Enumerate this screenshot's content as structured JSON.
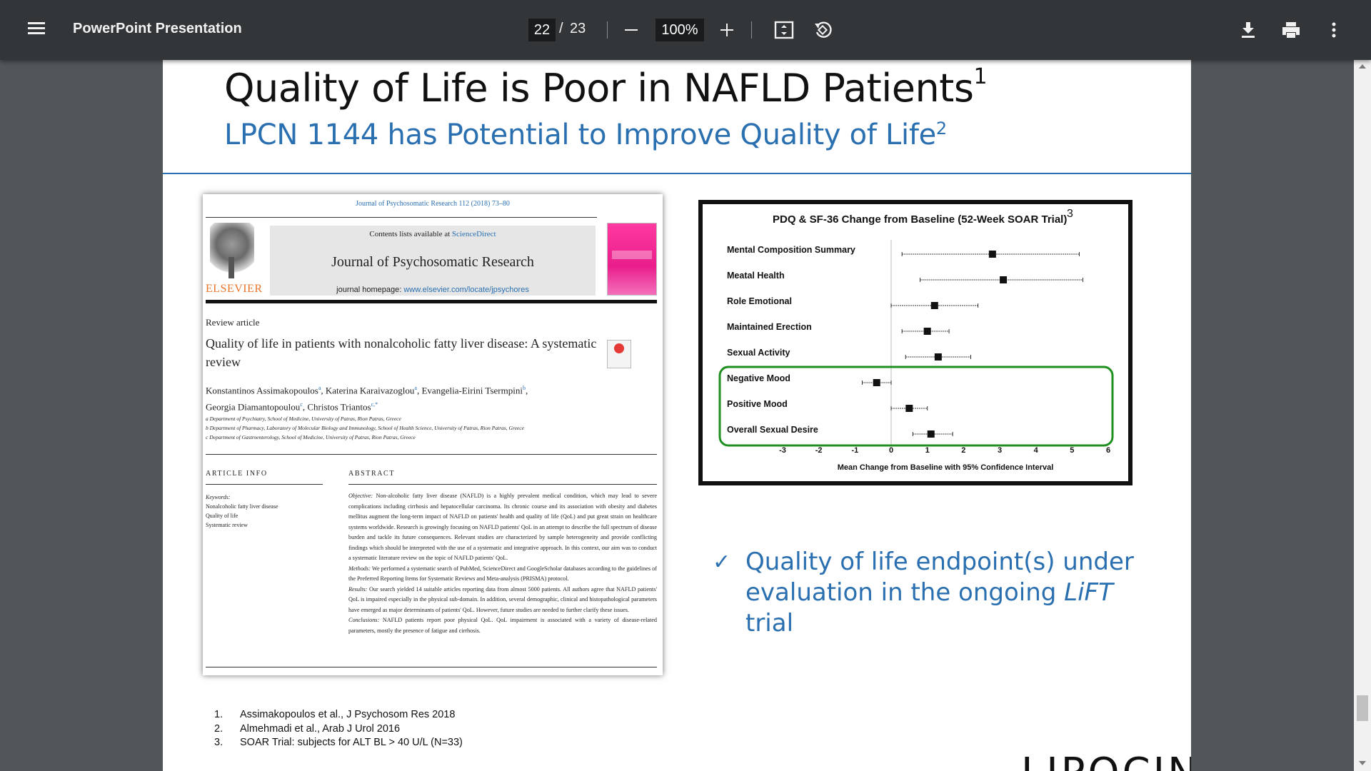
{
  "toolbar": {
    "title": "PowerPoint Presentation",
    "page_current": "22",
    "page_separator": "/",
    "page_total": "23",
    "zoom": "100%"
  },
  "slide": {
    "title": "Quality of Life is Poor in NAFLD Patients",
    "title_sup": "1",
    "subtitle": "LPCN 1144 has Potential to Improve Quality of Life",
    "subtitle_sup": "2",
    "accent_color": "#2a6fb0"
  },
  "paper": {
    "journal_ref": "Journal of Psychosomatic Research 112 (2018) 73–80",
    "contents_prefix": "Contents lists available at ",
    "contents_link": "ScienceDirect",
    "journal_name": "Journal of Psychosomatic Research",
    "homepage_prefix": "journal homepage: ",
    "homepage_link": "www.elsevier.com/locate/jpsychores",
    "publisher": "ELSEVIER",
    "article_type": "Review article",
    "article_title": "Quality of life in patients with nonalcoholic fatty liver disease: A systematic review",
    "authors_line1": "Konstantinos Assimakopoulos",
    "authors_sup1": "a",
    "authors_line1b": ", Katerina Karaivazoglou",
    "authors_sup2": "a",
    "authors_line1c": ", Evangelia-Eirini Tsermpini",
    "authors_sup3": "b",
    "authors_line1d": ",",
    "authors_line2": "Georgia Diamantopoulou",
    "authors_sup4": "c",
    "authors_line2b": ", Christos Triantos",
    "authors_sup5": "c,*",
    "affil_a": "a Department of Psychiatry, School of Medicine, University of Patras, Rion Patras, Greece",
    "affil_b": "b Department of Pharmacy, Laboratory of Molecular Biology and Immunology, School of Health Science, University of Patras, Rion Patras, Greece",
    "affil_c": "c Department of Gastroenterology, School of Medicine, University of Patras, Rion Patras, Greece",
    "article_info_heading": "ARTICLE INFO",
    "abstract_heading": "ABSTRACT",
    "keywords_label": "Keywords:",
    "keywords": [
      "Nonalcoholic fatty liver disease",
      "Quality of life",
      "Systematic review"
    ],
    "abs_objective_label": "Objective:",
    "abs_objective": " Non-alcoholic fatty liver disease (NAFLD) is a highly prevalent medical condition, which may lead to severe complications including cirrhosis and hepatocellular carcinoma. Its chronic course and its association with obesity and diabetes mellitus augment the long-term impact of NAFLD on patients' health and quality of life (QoL) and put great strain on healthcare systems worldwide. Research is growingly focusing on NAFLD patients' QoL in an attempt to describe the full spectrum of disease burden and tackle its future consequences. Relevant studies are characterized by sample heterogeneity and provide conflicting findings which should be interpreted with the use of a systematic and integrative approach. In this context, our aim was to conduct a systematic literature review on the topic of NAFLD patients' QoL.",
    "abs_methods_label": "Methods:",
    "abs_methods": " We performed a systematic search of PubMed, ScienceDirect and GoogleScholar databases according to the guidelines of the Preferred Reporting Items for Systematic Reviews and Meta-analysis (PRISMA) protocol.",
    "abs_results_label": "Results:",
    "abs_results": " Our search yielded 14 suitable articles reporting data from almost 5000 patients. All authors agree that NAFLD patients' QoL is impaired especially in the physical sub-domain. In addition, several demographic, clinical and histopathological parameters have emerged as major determinants of patients' QoL. However, future studies are needed to further clarify these issues.",
    "abs_conclusions_label": "Conclusions:",
    "abs_conclusions": " NAFLD patients report poor physical QoL. QoL impairment is associated with a variety of disease-related parameters, mostly the presence of fatigue and cirrhosis."
  },
  "chart_data": {
    "type": "forest",
    "title": "PDQ & SF-36 Change from Baseline (52-Week SOAR Trial)",
    "title_sup": "3",
    "xlabel": "Mean Change from Baseline with 95% Confidence Interval",
    "xlim": [
      -3,
      6
    ],
    "xticks": [
      "-3",
      "-2",
      "-1",
      "0",
      "1",
      "2",
      "3",
      "4",
      "5",
      "6"
    ],
    "rows": [
      {
        "label": "Mental Composition Summary",
        "mean": 2.8,
        "lo": 0.3,
        "hi": 5.2
      },
      {
        "label": "Meatal Health",
        "mean": 3.1,
        "lo": 0.8,
        "hi": 5.3
      },
      {
        "label": "Role Emotional",
        "mean": 1.2,
        "lo": 0.0,
        "hi": 2.4
      },
      {
        "label": "Maintained Erection",
        "mean": 1.0,
        "lo": 0.3,
        "hi": 1.6
      },
      {
        "label": "Sexual Activity",
        "mean": 1.3,
        "lo": 0.4,
        "hi": 2.2
      },
      {
        "label": "Negative Mood",
        "mean": -0.4,
        "lo": -0.8,
        "hi": 0.0
      },
      {
        "label": "Positive Mood",
        "mean": 0.5,
        "lo": 0.0,
        "hi": 1.0
      },
      {
        "label": "Overall Sexual Desire",
        "mean": 1.1,
        "lo": 0.6,
        "hi": 1.7
      }
    ],
    "highlight_rows": [
      5,
      6,
      7
    ],
    "highlight_color": "#1f8f1f"
  },
  "bullet": {
    "check": "✓",
    "text_before": "Quality of life endpoint(s) under evaluation in the ongoing ",
    "text_italic": "LiFT",
    "text_after": " trial"
  },
  "references": [
    {
      "num": "1.",
      "text": "Assimakopoulos et al., J Psychosom Res 2018"
    },
    {
      "num": "2.",
      "text": "Almehmadi et al., Arab J Urol 2016"
    },
    {
      "num": "3.",
      "text": "SOAR Trial: subjects for ALT BL > 40 U/L (N=33)"
    }
  ],
  "logo": {
    "text": "LIPOCINE",
    "reg": "®"
  }
}
